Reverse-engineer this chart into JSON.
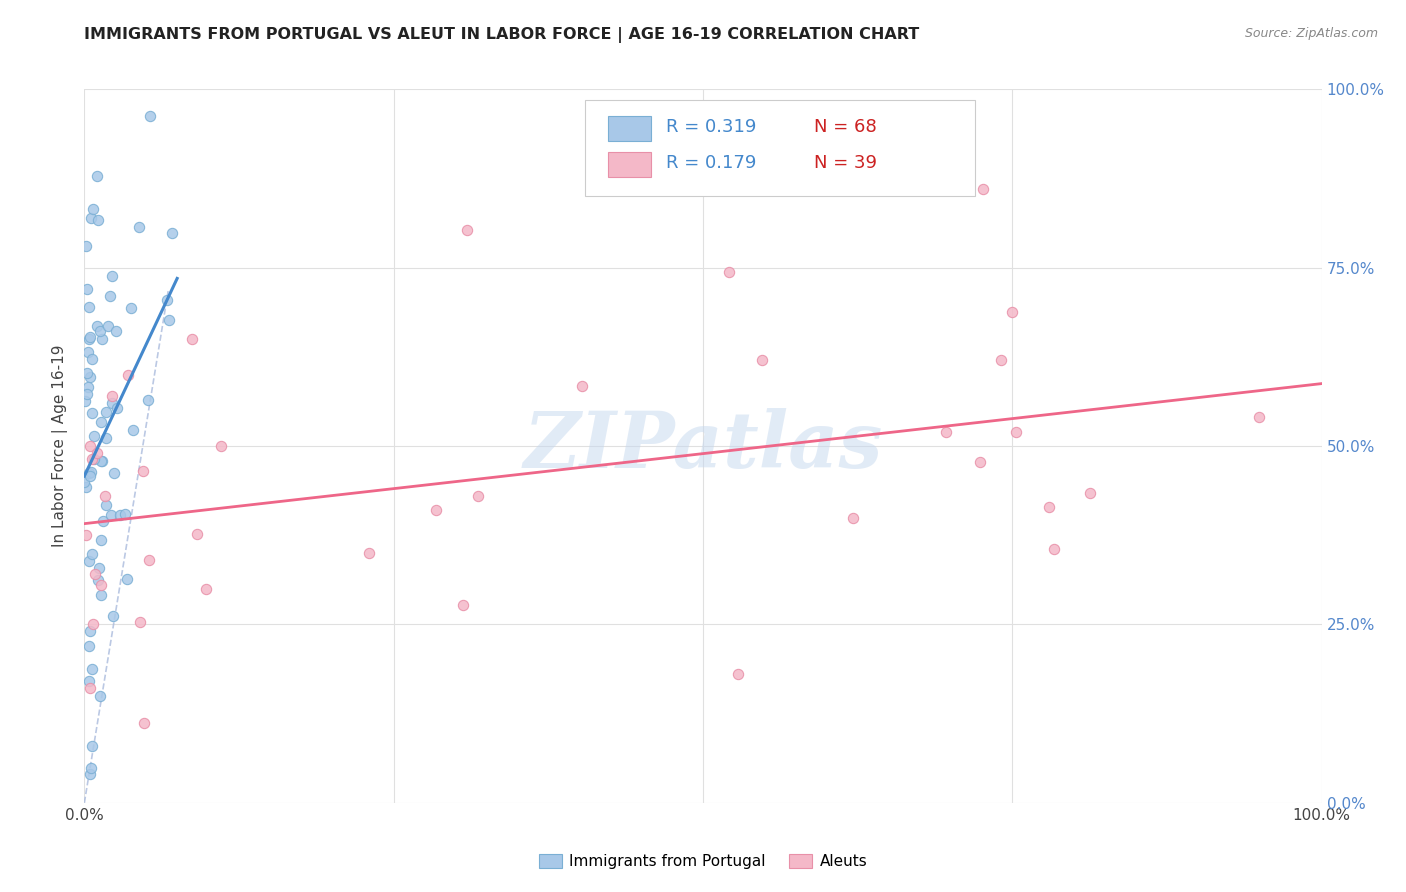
{
  "title": "IMMIGRANTS FROM PORTUGAL VS ALEUT IN LABOR FORCE | AGE 16-19 CORRELATION CHART",
  "source": "Source: ZipAtlas.com",
  "ylabel": "In Labor Force | Age 16-19",
  "legend_r1": "0.319",
  "legend_n1": "68",
  "legend_r2": "0.179",
  "legend_n2": "39",
  "legend_label1": "Immigrants from Portugal",
  "legend_label2": "Aleuts",
  "blue_color": "#a8c8e8",
  "pink_color": "#f4b8c8",
  "blue_edge_color": "#7aafd4",
  "pink_edge_color": "#e890a8",
  "blue_line_color": "#4488cc",
  "pink_line_color": "#ee6688",
  "diag_color": "#aabbdd",
  "watermark": "ZIPatlas",
  "xlim": [
    0.0,
    1.0
  ],
  "ylim": [
    0.0,
    1.0
  ],
  "grid_color": "#e0e0e0",
  "background_color": "#ffffff",
  "title_color": "#222222",
  "source_color": "#888888",
  "right_tick_color": "#5588cc",
  "xtick_color": "#444444",
  "blue_r_color": "#4488cc",
  "blue_n_color": "#cc2222",
  "pink_r_color": "#4488cc",
  "pink_n_color": "#cc2222"
}
